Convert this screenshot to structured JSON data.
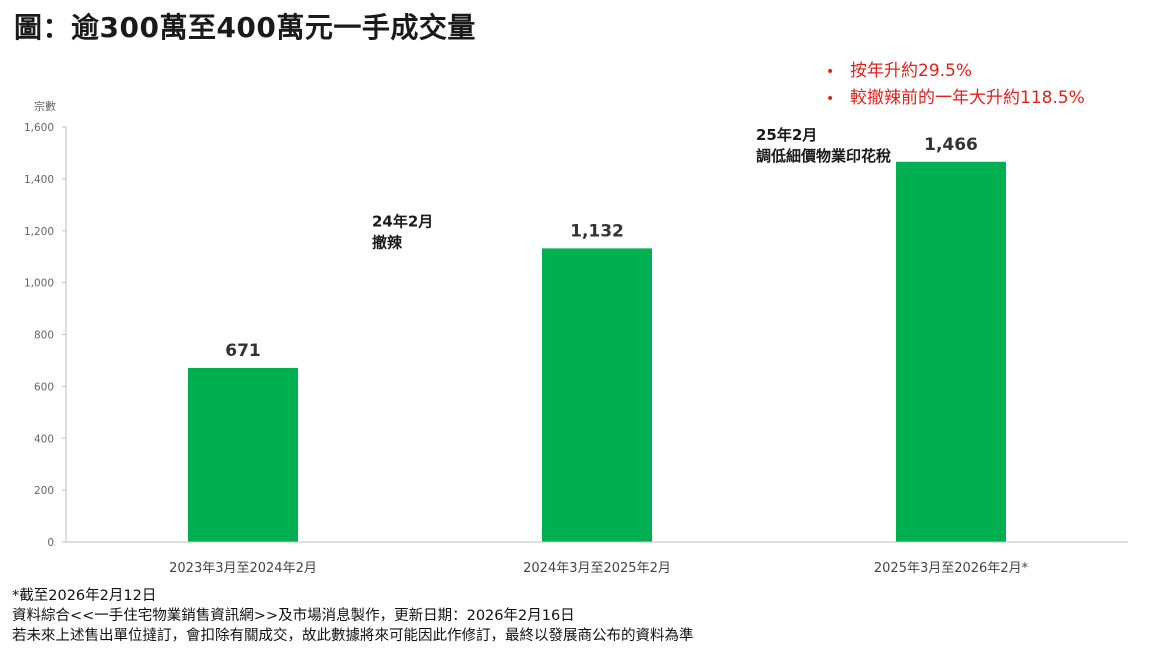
{
  "title": "圖：逾300萬至400萬元一手成交量",
  "bullets": [
    "•",
    "按年升約29.5%",
    "較撤辣前的一年大升約118.5%"
  ],
  "footnotes": [
    "*截至2026年2月12日",
    "資料綜合<<一手住宅物業銷售資訊網>>及市場消息製作，更新日期：2026年2月16日",
    "若未來上述售出單位撻訂，會扣除有關成交，故此數據將來可能因此作修訂，最終以發展商公布的資料為準"
  ],
  "chart_data": {
    "type": "bar",
    "ylabel": "宗數",
    "ylim": [
      0,
      1600
    ],
    "yticks": [
      0,
      200,
      400,
      600,
      800,
      1000,
      1200,
      1400,
      1600
    ],
    "ytick_labels": [
      "0",
      "200",
      "400",
      "600",
      "800",
      "1,000",
      "1,200",
      "1,400",
      "1,600"
    ],
    "grid": false,
    "categories": [
      "2023年3月至2024年2月",
      "2024年3月至2025年2月",
      "2025年3月至2026年2月*"
    ],
    "values": [
      671,
      1132,
      1466
    ],
    "value_labels": [
      "671",
      "1,132",
      "1,466"
    ],
    "bar_color": "#00b050",
    "annotations": [
      {
        "lines": [
          "24年2月",
          "撤辣"
        ],
        "between": [
          0,
          1
        ]
      },
      {
        "lines": [
          "25年2月",
          "調低細價物業印花稅"
        ],
        "between": [
          1,
          2
        ]
      }
    ]
  }
}
